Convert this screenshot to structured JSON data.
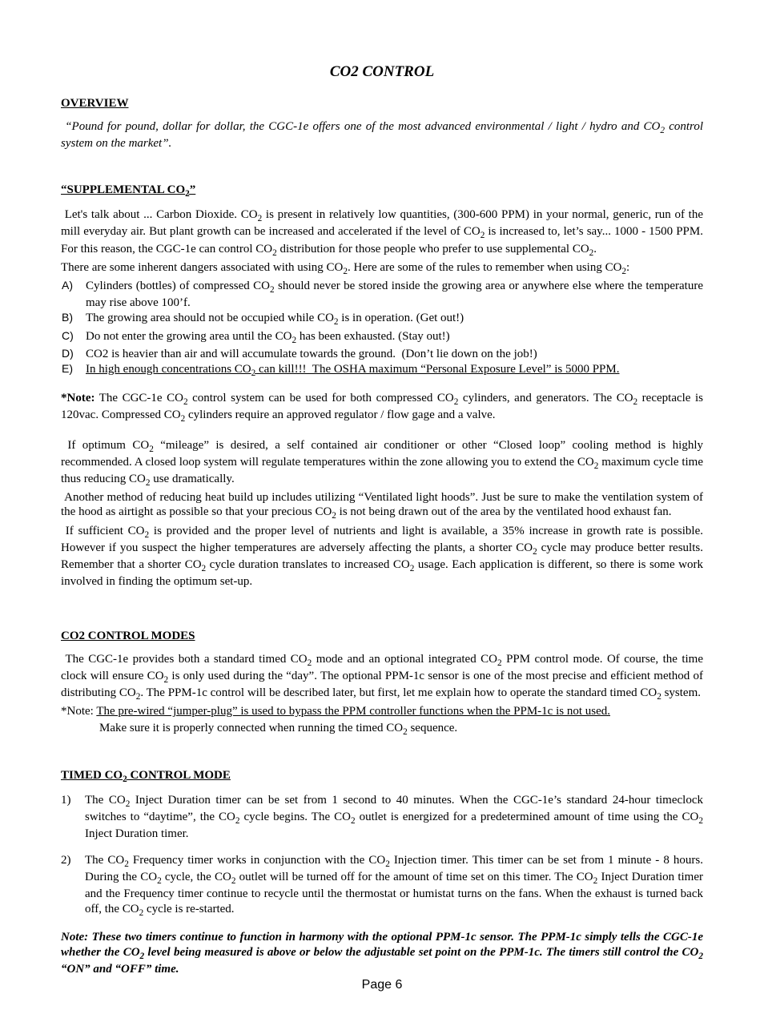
{
  "title": "CO2 CONTROL",
  "overview_head": "OVERVIEW",
  "quote_html": " “Pound for pound, dollar for dollar, the CGC-1e offers one of the most advanced environmental / light / hydro and CO<sub>2</sub> control system on the market”.",
  "supp_head_html": "“SUPPLEMENTAL CO<sub>2</sub>”",
  "supp_intro_html": " Let's talk about ... Carbon Dioxide. CO<sub>2</sub> is present in relatively low quantities, (300-600 PPM) in your normal, generic, run of the mill everyday air. But plant growth can be increased and accelerated if the level of CO<sub>2</sub> is increased to, let’s say... 1000 - 1500 PPM. For this reason, the CGC-1e can control CO<sub>2</sub> distribution for those people who prefer to use supplemental CO<sub>2</sub>.",
  "supp_rules_lead_html": "There are some inherent dangers associated with using CO<sub>2</sub>. Here are some of the rules to remember when using CO<sub>2</sub>:",
  "rules": [
    {
      "marker": "A)",
      "html": "Cylinders (bottles) of compressed CO<sub>2</sub> should never be stored inside the growing area or anywhere else where the temperature may rise above 100’f.",
      "just": true
    },
    {
      "marker": "B)",
      "html": "The growing area should not be occupied while CO<sub>2</sub> is in operation. (Get out!)"
    },
    {
      "marker": "C)",
      "html": "Do not enter the growing area until the CO<sub>2</sub> has been exhausted. (Stay out!)"
    },
    {
      "marker": "D)",
      "html": "CO2 is heavier than air and will accumulate towards the ground.  (Don’t lie down on the job!)"
    },
    {
      "marker": "E)",
      "html": "<span class=\"under\">In high enough concentrations CO<sub>2</sub> can kill!!!  The OSHA maximum “Personal Exposure Level” is 5000 PPM.</span>"
    }
  ],
  "star_note_html": "<b>*Note:</b> The CGC-1e CO<sub>2</sub> control system can be used for both compressed CO<sub>2</sub> cylinders, and generators. The CO<sub>2</sub> receptacle is 120vac. Compressed CO<sub>2</sub> cylinders require an approved regulator / flow gage and a valve.",
  "p_closedloop_html": " If optimum CO<sub>2</sub> “mileage” is desired, a self contained air conditioner or other “Closed loop” cooling method is highly recommended. A closed loop system will regulate temperatures within the zone allowing you to extend the CO<sub>2</sub> maximum cycle time thus reducing CO<sub>2</sub> use dramatically.",
  "p_hoods_html": " Another method of reducing heat build up includes utilizing “Ventilated light hoods”. Just be sure to make the ventilation system of the hood as airtight as possible so that your precious CO<sub>2</sub> is not being drawn out of the area by the ventilated hood exhaust fan.",
  "p_growth_html": " If sufficient CO<sub>2</sub> is provided and the proper level of nutrients and light is available, a 35% increase in growth rate is possible. However if you suspect the higher temperatures are adversely affecting the plants, a shorter CO<sub>2</sub> cycle may produce better results. Remember that a shorter CO<sub>2</sub> cycle duration translates to increased CO<sub>2</sub> usage. Each application is different, so there is some work involved in finding the optimum set-up.",
  "modes_head": "CO2 CONTROL MODES",
  "modes_para_html": " The CGC-1e provides both a standard timed CO<sub>2</sub> mode and an optional integrated CO<sub>2</sub> PPM control mode. Of course, the time clock will ensure CO<sub>2</sub> is only used during the “day”. The optional PPM-1c sensor is one of the most precise and efficient method of distributing CO<sub>2</sub>. The PPM-1c control will be described later, but first, let me explain how to operate the standard timed CO<sub>2</sub> system.",
  "modes_note_line1_html": "*Note: <span class=\"under\">The pre-wired “jumper-plug” is used to bypass the PPM controller functions when the PPM-1c is not used.</span>",
  "modes_note_line2_html": "Make sure it is properly connected when running the timed CO<sub>2</sub> sequence.",
  "timed_head_html": "TIMED CO<sub>2</sub> CONTROL MODE",
  "timed_items": [
    {
      "marker": "1)",
      "html": "The CO<sub>2</sub> Inject Duration timer can be set from 1 second to 40 minutes. When the CGC-1e’s standard 24-hour timeclock switches to “daytime”, the CO<sub>2</sub> cycle begins. The CO<sub>2</sub> outlet is energized for a predetermined amount of time using the CO<sub>2</sub> Inject Duration timer."
    },
    {
      "marker": "2)",
      "html": "The CO<sub>2</sub> Frequency timer works in conjunction with the CO<sub>2</sub> Injection timer. This timer can be set from 1 minute - 8 hours. During the CO<sub>2</sub> cycle, the CO<sub>2</sub> outlet will be turned off for the amount of time set on this timer. The CO<sub>2</sub> Inject Duration timer and the Frequency timer continue to recycle until the thermostat or humistat turns on the fans. When the exhaust is turned back off, the CO<sub>2</sub> cycle is re-started."
    }
  ],
  "final_note_html": "Note: These two timers continue to function in harmony with the optional PPM-1c sensor. The PPM-1c simply tells the CGC-1e whether the CO<sub>2</sub> level being measured is above or below the adjustable set point on the PPM-1c. The timers still control the CO<sub>2</sub> “ON” and “OFF” time.",
  "footer": "Page 6"
}
